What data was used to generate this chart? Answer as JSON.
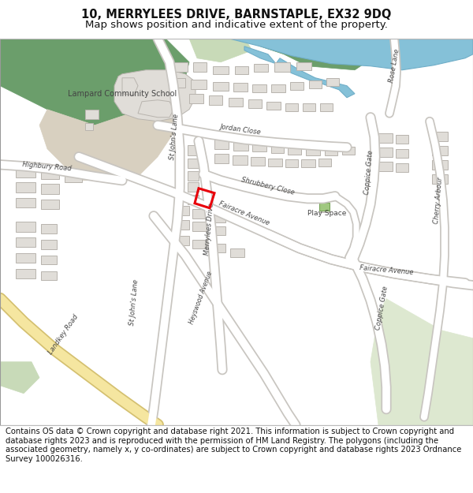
{
  "title_line1": "10, MERRYLEES DRIVE, BARNSTAPLE, EX32 9DQ",
  "title_line2": "Map shows position and indicative extent of the property.",
  "footer_text": "Contains OS data © Crown copyright and database right 2021. This information is subject to Crown copyright and database rights 2023 and is reproduced with the permission of HM Land Registry. The polygons (including the associated geometry, namely x, y co-ordinates) are subject to Crown copyright and database rights 2023 Ordnance Survey 100026316.",
  "map_bg": "#f8f7f5",
  "road_white": "#ffffff",
  "road_outline": "#c8c5c0",
  "road_yellow": "#f5e6a0",
  "road_yellow_outline": "#d4c070",
  "green_dark": "#6b9e6b",
  "green_light": "#c8dab8",
  "green_very_light": "#dde8d0",
  "green_school": "#d0c8b8",
  "water_blue": "#85c1d8",
  "water_green": "#5a8f5a",
  "building_fill": "#e0ddd8",
  "building_outline": "#b8b4ae",
  "text_dark": "#444444",
  "red_color": "#e8000a",
  "title_fontsize": 10.5,
  "subtitle_fontsize": 9.5,
  "footer_fontsize": 7.2,
  "label_fontsize": 6.0,
  "figsize": [
    6.0,
    6.25
  ],
  "dpi": 100
}
